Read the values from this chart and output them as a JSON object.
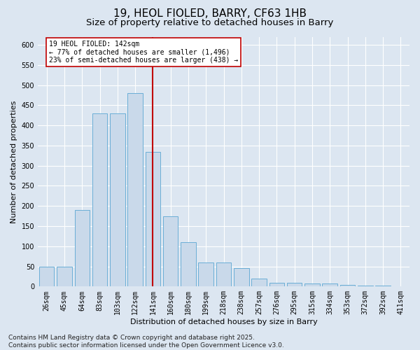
{
  "title_line1": "19, HEOL FIOLED, BARRY, CF63 1HB",
  "title_line2": "Size of property relative to detached houses in Barry",
  "xlabel": "Distribution of detached houses by size in Barry",
  "ylabel": "Number of detached properties",
  "categories": [
    "26sqm",
    "45sqm",
    "64sqm",
    "83sqm",
    "103sqm",
    "122sqm",
    "141sqm",
    "160sqm",
    "180sqm",
    "199sqm",
    "218sqm",
    "238sqm",
    "257sqm",
    "276sqm",
    "295sqm",
    "315sqm",
    "334sqm",
    "353sqm",
    "372sqm",
    "392sqm",
    "411sqm"
  ],
  "values": [
    50,
    50,
    190,
    430,
    430,
    480,
    335,
    175,
    110,
    60,
    60,
    45,
    20,
    10,
    10,
    7,
    7,
    4,
    3,
    2,
    1
  ],
  "bar_color": "#c9d9ea",
  "bar_edge_color": "#6aaed6",
  "highlight_index": 6,
  "highlight_line_color": "#c00000",
  "annotation_text": "19 HEOL FIOLED: 142sqm\n← 77% of detached houses are smaller (1,496)\n23% of semi-detached houses are larger (438) →",
  "annotation_box_color": "#ffffff",
  "annotation_box_edge": "#c00000",
  "ylim": [
    0,
    620
  ],
  "yticks": [
    0,
    50,
    100,
    150,
    200,
    250,
    300,
    350,
    400,
    450,
    500,
    550,
    600
  ],
  "background_color": "#dce6f1",
  "plot_bg_color": "#dce6f1",
  "footer_text": "Contains HM Land Registry data © Crown copyright and database right 2025.\nContains public sector information licensed under the Open Government Licence v3.0.",
  "title_fontsize": 11,
  "subtitle_fontsize": 9.5,
  "label_fontsize": 8,
  "tick_fontsize": 7,
  "annotation_fontsize": 7,
  "footer_fontsize": 6.5
}
